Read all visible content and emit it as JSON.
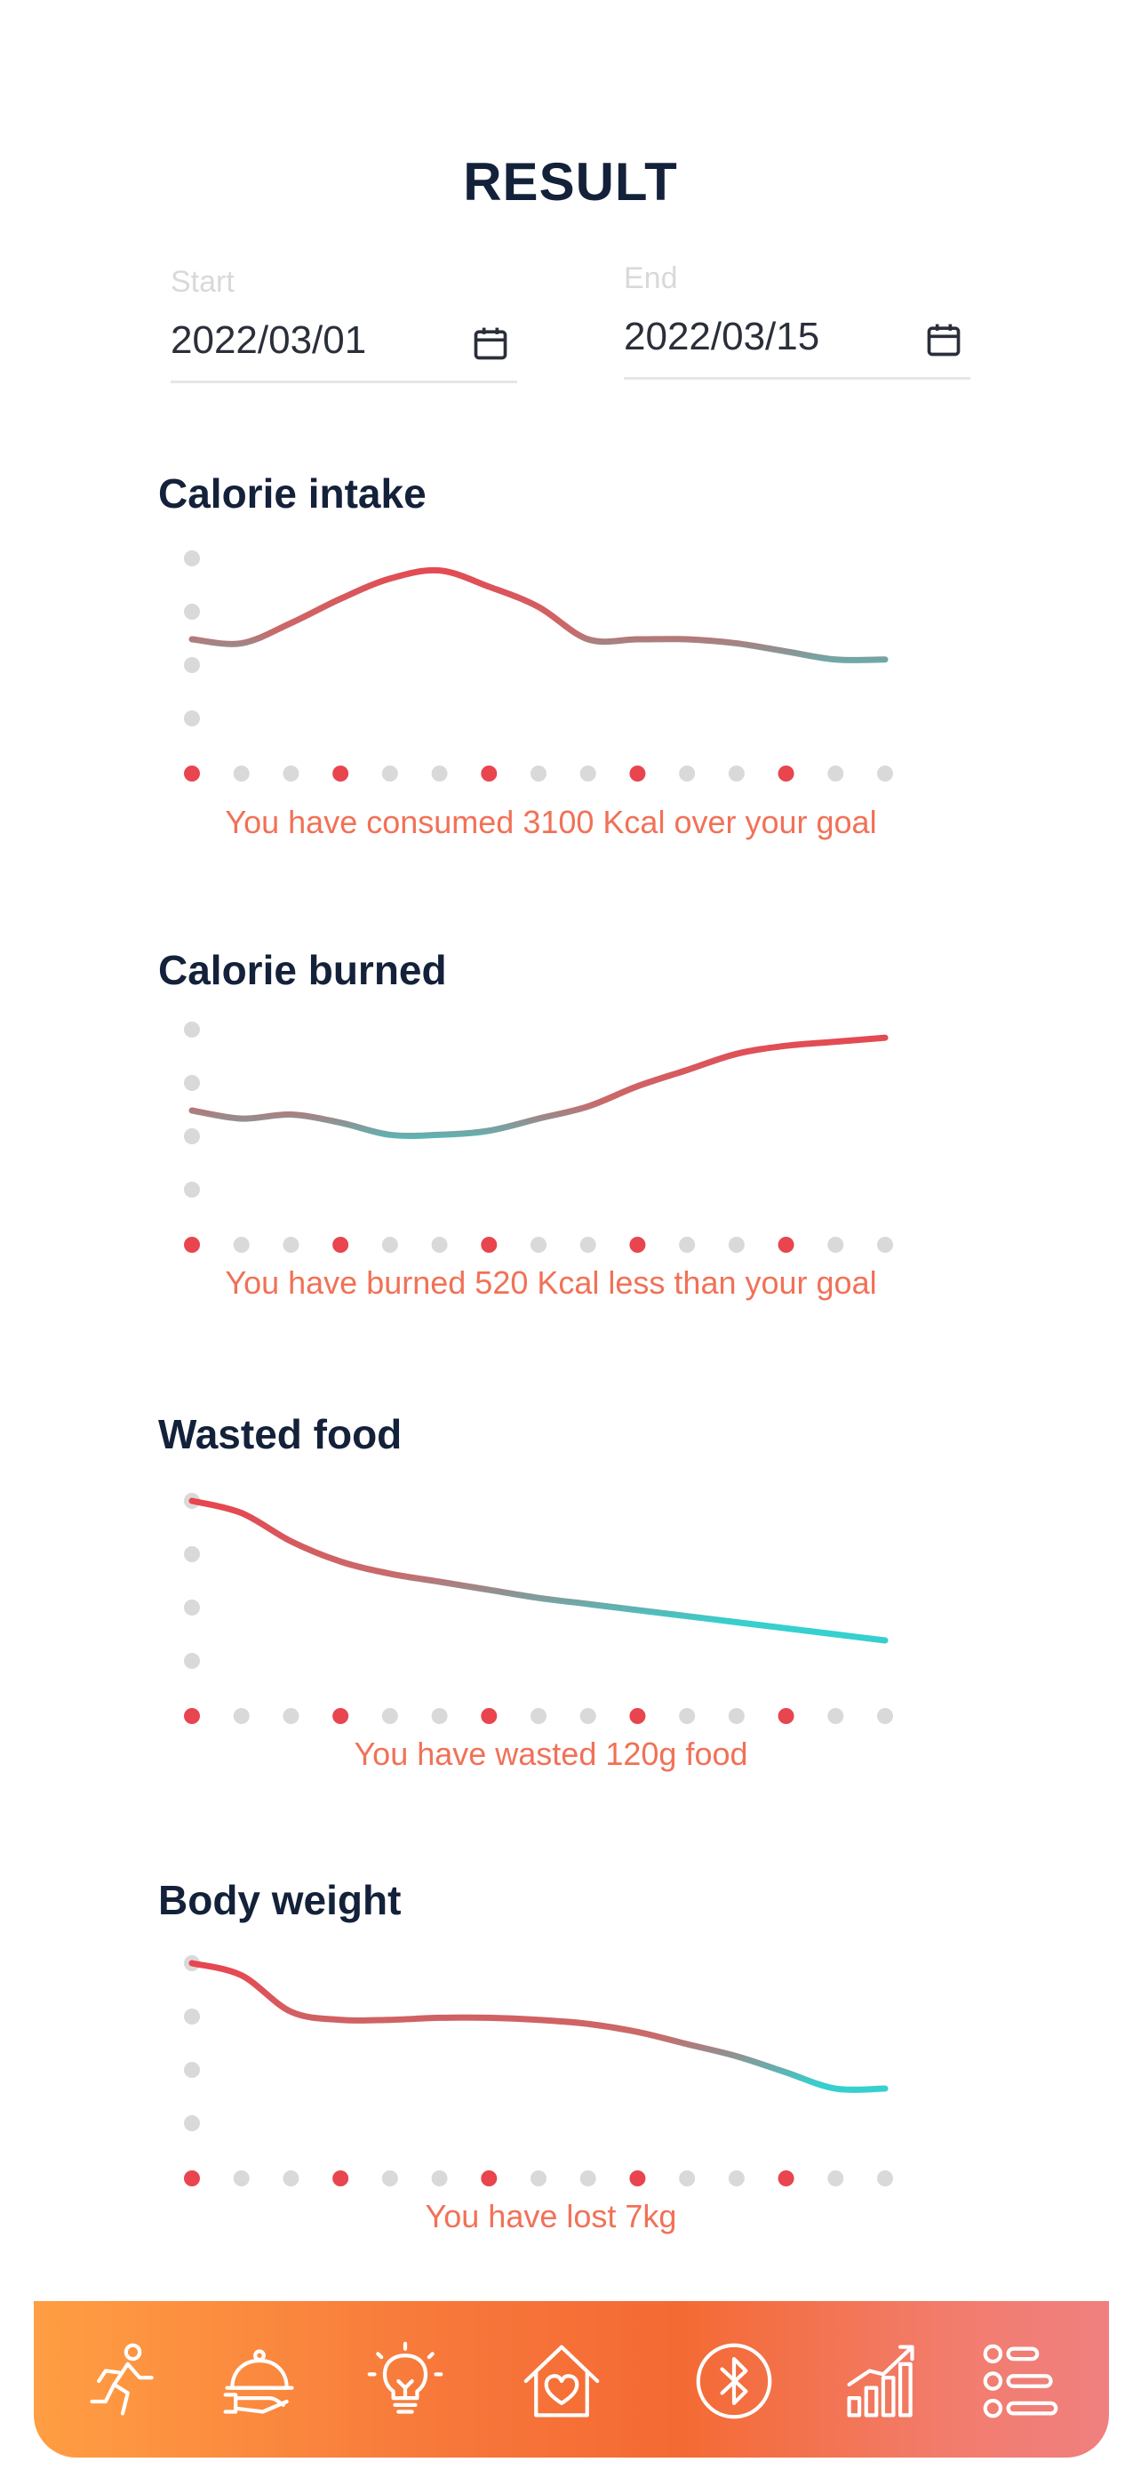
{
  "page": {
    "title": "RESULT"
  },
  "date_range": {
    "start": {
      "label": "Start",
      "value": "2022/03/01",
      "icon": "calendar-icon"
    },
    "end": {
      "label": "End",
      "value": "2022/03/15",
      "icon": "calendar-icon"
    }
  },
  "colors": {
    "accent_red": "#e8454f",
    "teal": "#35d0cf",
    "dot_gray": "#d9d9d9",
    "message": "#f17157"
  },
  "chart_data": [
    {
      "type": "line",
      "title": "Calorie intake",
      "x": [
        1,
        2,
        3,
        4,
        5,
        6,
        7,
        8,
        9,
        10,
        11,
        12,
        13,
        14,
        15
      ],
      "highlighted_x": [
        1,
        4,
        7,
        10,
        13
      ],
      "y_ticks": 4,
      "series": [
        {
          "values": [
            2.0,
            1.9,
            2.4,
            3.0,
            3.5,
            3.7,
            3.3,
            2.8,
            2.0,
            2.0,
            2.0,
            1.9,
            1.7,
            1.5,
            1.5
          ]
        }
      ],
      "ylim": [
        0,
        4
      ],
      "message": "You have consumed 3100 Kcal over your goal"
    },
    {
      "type": "line",
      "title": "Calorie burned",
      "x": [
        1,
        2,
        3,
        4,
        5,
        6,
        7,
        8,
        9,
        10,
        11,
        12,
        13,
        14,
        15
      ],
      "highlighted_x": [
        1,
        4,
        7,
        10,
        13
      ],
      "y_ticks": 4,
      "series": [
        {
          "values": [
            2.0,
            1.8,
            1.9,
            1.7,
            1.4,
            1.4,
            1.5,
            1.8,
            2.1,
            2.6,
            3.0,
            3.4,
            3.6,
            3.7,
            3.8
          ]
        }
      ],
      "ylim": [
        0,
        4
      ],
      "message": "You have burned 520 Kcal less than your goal"
    },
    {
      "type": "line",
      "title": "Wasted food",
      "x": [
        1,
        2,
        3,
        4,
        5,
        6,
        7,
        8,
        9,
        10,
        11,
        12,
        13,
        14,
        15
      ],
      "highlighted_x": [
        1,
        4,
        7,
        10,
        13
      ],
      "y_ticks": 4,
      "series": [
        {
          "values": [
            4.0,
            3.7,
            3.0,
            2.5,
            2.2,
            2.0,
            1.8,
            1.6,
            1.45,
            1.3,
            1.15,
            1.0,
            0.85,
            0.7,
            0.55
          ]
        }
      ],
      "ylim": [
        0,
        4
      ],
      "message": "You have wasted 120g food"
    },
    {
      "type": "line",
      "title": "Body weight",
      "x": [
        1,
        2,
        3,
        4,
        5,
        6,
        7,
        8,
        9,
        10,
        11,
        12,
        13,
        14,
        15
      ],
      "highlighted_x": [
        1,
        4,
        7,
        10,
        13
      ],
      "y_ticks": 4,
      "series": [
        {
          "values": [
            4.0,
            3.7,
            2.8,
            2.6,
            2.6,
            2.65,
            2.65,
            2.6,
            2.5,
            2.3,
            2.0,
            1.7,
            1.3,
            0.9,
            0.9
          ]
        }
      ],
      "ylim": [
        0,
        4
      ],
      "message": "You have lost 7kg"
    }
  ],
  "nav": {
    "items": [
      {
        "icon": "running-icon"
      },
      {
        "icon": "food-cloche-icon"
      },
      {
        "icon": "lightbulb-icon"
      },
      {
        "icon": "home-heart-icon"
      },
      {
        "icon": "bluetooth-icon"
      },
      {
        "icon": "stats-chart-icon"
      },
      {
        "icon": "list-icon"
      }
    ]
  }
}
